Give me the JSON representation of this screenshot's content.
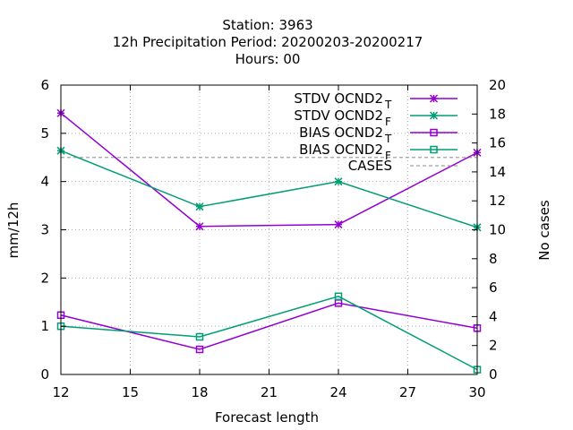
{
  "chart_data": {
    "type": "line",
    "title_lines": [
      "Station:     3963",
      "12h Precipitation   Period: 20200203-20200217",
      "Hours:  00"
    ],
    "xlabel": "Forecast length",
    "ylabel": "mm/12h",
    "y2label": "No cases",
    "xlim": [
      12,
      30
    ],
    "ylim": [
      0,
      6
    ],
    "y2lim": [
      0,
      20
    ],
    "x_ticks": [
      12,
      15,
      18,
      21,
      24,
      27,
      30
    ],
    "y_ticks": [
      0,
      1,
      2,
      3,
      4,
      5,
      6
    ],
    "y2_ticks": [
      0,
      2,
      4,
      6,
      8,
      10,
      12,
      14,
      16,
      18,
      20
    ],
    "grid": true,
    "legend_position": "top-right",
    "x": [
      12,
      18,
      24,
      30
    ],
    "series": [
      {
        "name": "STDV OCND2",
        "subscript": "T",
        "values": [
          5.42,
          3.07,
          3.11,
          4.6
        ],
        "color": "#9400d3",
        "marker": "x-star",
        "dashed": false,
        "axis": "y"
      },
      {
        "name": "STDV OCND2",
        "subscript": "F",
        "values": [
          4.64,
          3.48,
          4.0,
          3.05
        ],
        "color": "#009e73",
        "marker": "x-star",
        "dashed": false,
        "axis": "y"
      },
      {
        "name": "BIAS OCND2",
        "subscript": "T",
        "values": [
          1.23,
          0.52,
          1.48,
          0.96
        ],
        "color": "#9400d3",
        "marker": "square",
        "dashed": false,
        "axis": "y"
      },
      {
        "name": "BIAS OCND2",
        "subscript": "F",
        "values": [
          1.0,
          0.78,
          1.62,
          0.1
        ],
        "color": "#009e73",
        "marker": "square",
        "dashed": false,
        "axis": "y"
      },
      {
        "name": "CASES",
        "subscript": "",
        "values": [
          15,
          15,
          15,
          15
        ],
        "color": "#a0a0a0",
        "marker": "none",
        "dashed": true,
        "axis": "y2"
      }
    ]
  }
}
